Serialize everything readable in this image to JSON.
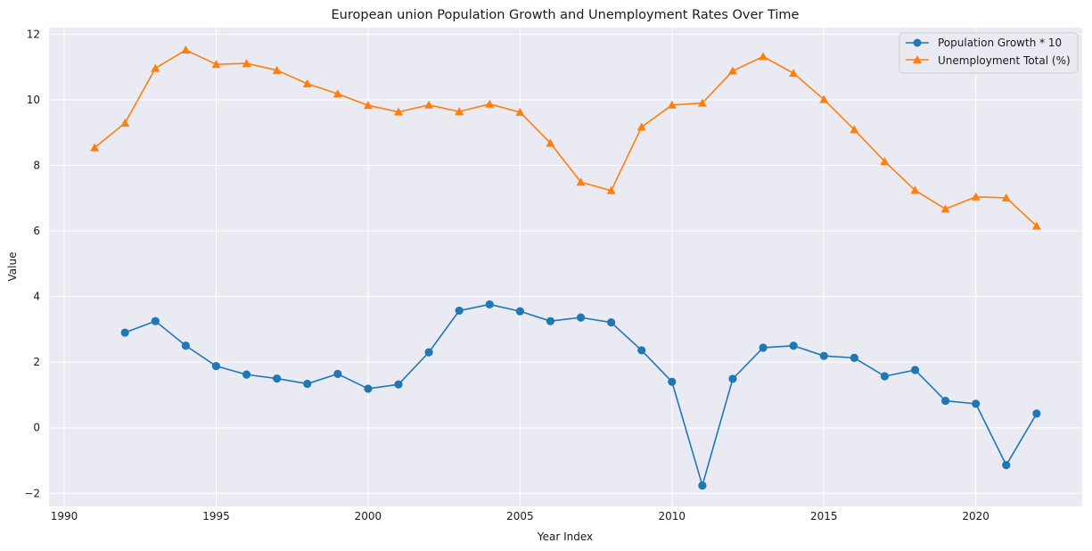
{
  "chart_data": {
    "type": "line",
    "title": "European union Population Growth and Unemployment Rates Over Time",
    "xlabel": "Year Index",
    "ylabel": "Value",
    "xlim": [
      1989.5,
      2023.5
    ],
    "ylim": [
      -2.4,
      12.2
    ],
    "xticks": [
      1990,
      1995,
      2000,
      2005,
      2010,
      2015,
      2020
    ],
    "yticks": [
      -2,
      0,
      2,
      4,
      6,
      8,
      10,
      12
    ],
    "ytick_labels": [
      "−2",
      "0",
      "2",
      "4",
      "6",
      "8",
      "10",
      "12"
    ],
    "grid": true,
    "legend_position": "top-right",
    "series": [
      {
        "name": "Population Growth * 10",
        "color": "#1f77b4",
        "marker": "circle",
        "x": [
          1992,
          1993,
          1994,
          1995,
          1996,
          1997,
          1998,
          1999,
          2000,
          2001,
          2002,
          2003,
          2004,
          2005,
          2006,
          2007,
          2008,
          2009,
          2010,
          2011,
          2012,
          2013,
          2014,
          2015,
          2016,
          2017,
          2018,
          2019,
          2020,
          2021,
          2022
        ],
        "values": [
          2.9,
          3.25,
          2.5,
          1.88,
          1.62,
          1.5,
          1.34,
          1.64,
          1.19,
          1.32,
          2.3,
          3.57,
          3.76,
          3.55,
          3.25,
          3.36,
          3.21,
          2.36,
          1.4,
          -1.76,
          1.49,
          2.44,
          2.5,
          2.19,
          2.13,
          1.57,
          1.76,
          0.82,
          0.73,
          -1.14,
          0.43
        ]
      },
      {
        "name": "Unemployment Total (%)",
        "color": "#ff7f0e",
        "marker": "triangle",
        "x": [
          1991,
          1992,
          1993,
          1994,
          1995,
          1996,
          1997,
          1998,
          1999,
          2000,
          2001,
          2002,
          2003,
          2004,
          2005,
          2006,
          2007,
          2008,
          2009,
          2010,
          2011,
          2012,
          2013,
          2014,
          2015,
          2016,
          2017,
          2018,
          2019,
          2020,
          2021,
          2022
        ],
        "values": [
          8.54,
          9.29,
          10.96,
          11.52,
          11.08,
          11.11,
          10.9,
          10.49,
          10.18,
          9.83,
          9.63,
          9.84,
          9.64,
          9.87,
          9.62,
          8.68,
          7.49,
          7.23,
          9.17,
          9.84,
          9.9,
          10.88,
          11.32,
          10.81,
          10.01,
          9.09,
          8.12,
          7.24,
          6.67,
          7.04,
          7.01,
          6.15
        ]
      }
    ]
  }
}
